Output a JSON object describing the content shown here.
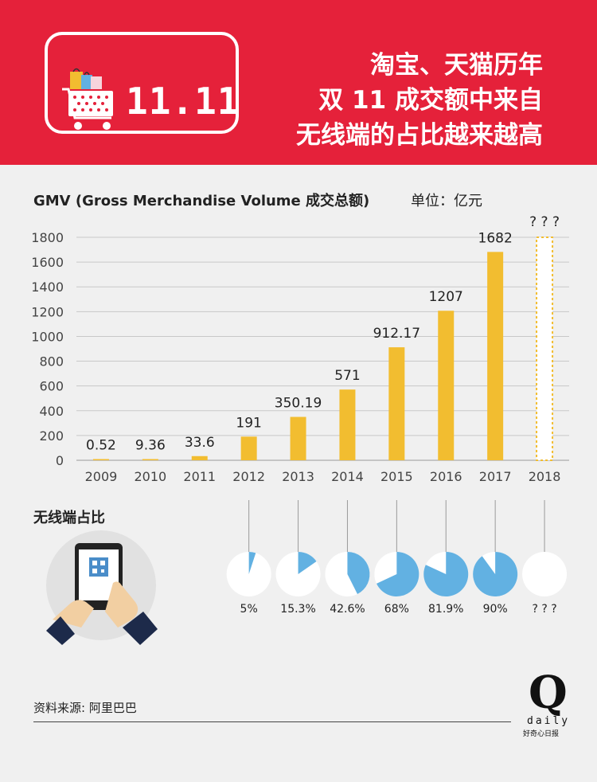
{
  "header": {
    "logo_text": "11.11",
    "headline": [
      "淘宝、天猫历年",
      "双 11 成交额中来自",
      "无线端的占比越来越高"
    ]
  },
  "gmv": {
    "title": "GMV (Gross Merchandise Volume 成交总额)",
    "unit": "单位：亿元"
  },
  "share": {
    "title": "无线端占比"
  },
  "source": "资料来源: 阿里巴巴",
  "brand": {
    "name": "daily",
    "cn": "好奇心日报"
  },
  "colors": {
    "header_bg": "#e5213a",
    "bar": "#f2bd30",
    "pie": "#62b1e2",
    "pie_bg": "#ffffff"
  },
  "chart_data": {
    "type": "bar",
    "categories": [
      "2009",
      "2010",
      "2011",
      "2012",
      "2013",
      "2014",
      "2015",
      "2016",
      "2017",
      "2018"
    ],
    "values": [
      0.52,
      9.36,
      33.6,
      191,
      350.19,
      571,
      912.17,
      1207,
      1682,
      null
    ],
    "value_labels": [
      "0.52",
      "9.36",
      "33.6",
      "191",
      "350.19",
      "571",
      "912.17",
      "1207",
      "1682",
      "? ? ?"
    ],
    "yticks": [
      "0",
      "200",
      "400",
      "600",
      "800",
      "1000",
      "1200",
      "1400",
      "1600",
      "1800"
    ],
    "ylim": [
      0,
      1800
    ],
    "grid": true,
    "shares": [
      {
        "value": null,
        "label": ""
      },
      {
        "value": null,
        "label": ""
      },
      {
        "value": null,
        "label": ""
      },
      {
        "value": 5,
        "label": "5%"
      },
      {
        "value": 15.3,
        "label": "15.3%"
      },
      {
        "value": 42.6,
        "label": "42.6%"
      },
      {
        "value": 68,
        "label": "68%"
      },
      {
        "value": 81.9,
        "label": "81.9%"
      },
      {
        "value": 90,
        "label": "90%"
      },
      {
        "value": null,
        "label": "? ? ?"
      }
    ]
  }
}
